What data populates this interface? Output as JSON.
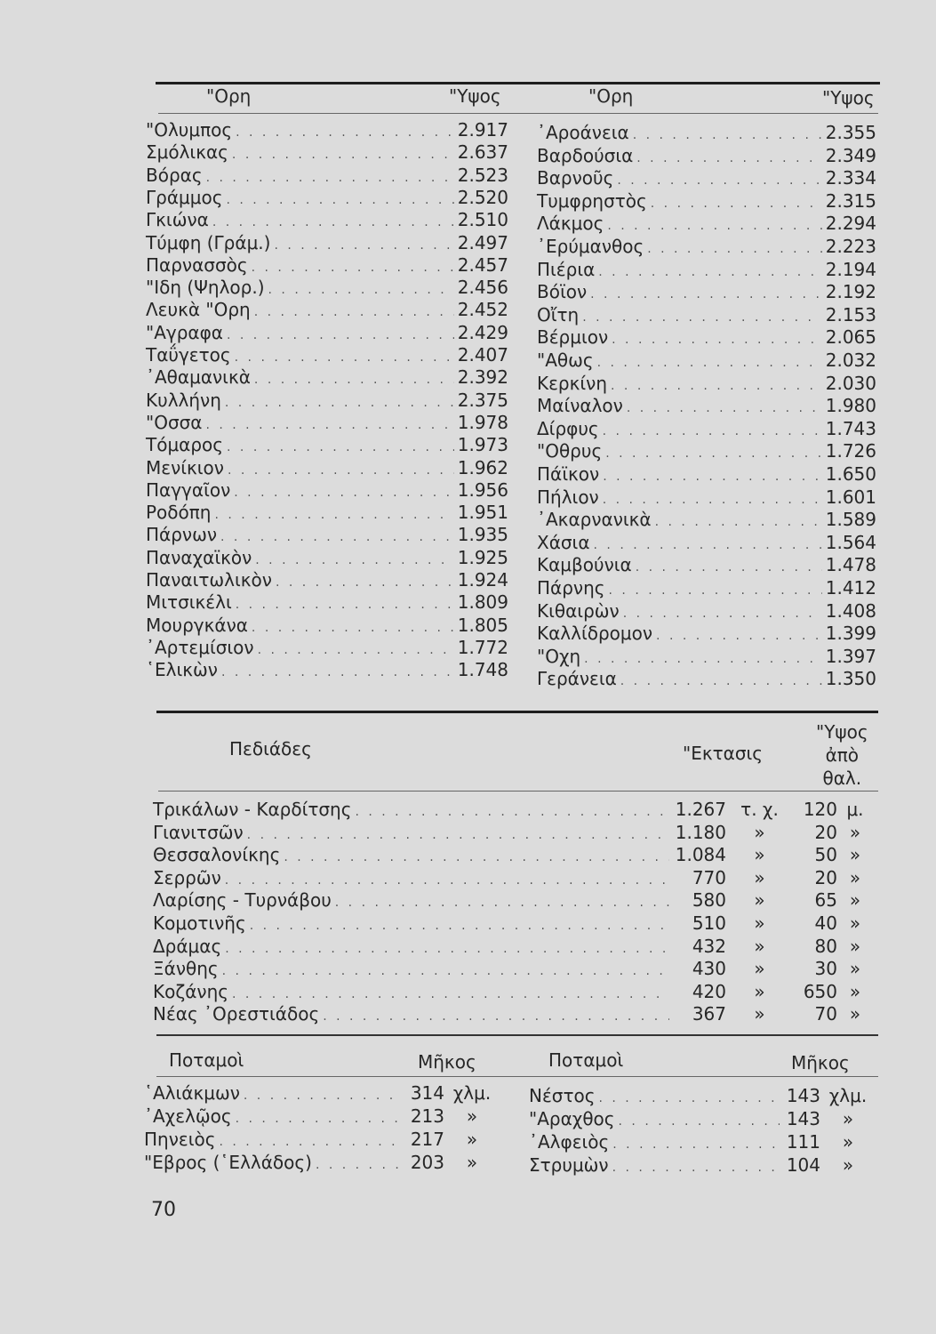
{
  "mountains": {
    "headers": {
      "name": "\"Ορη",
      "height": "\"Υψος"
    },
    "left": [
      [
        "\"Ολυμπος",
        "2.917"
      ],
      [
        "Σμόλικας",
        "2.637"
      ],
      [
        "Βόρας",
        "2.523"
      ],
      [
        "Γράμμος",
        "2.520"
      ],
      [
        "Γκιώνα",
        "2.510"
      ],
      [
        "Τύμφη (Γράμ.)",
        "2.497"
      ],
      [
        "Παρνασσὸς",
        "2.457"
      ],
      [
        "\"Ιδη (Ψηλορ.)",
        "2.456"
      ],
      [
        "Λευκὰ \"Ορη",
        "2.452"
      ],
      [
        "\"Αγραφα",
        "2.429"
      ],
      [
        "Ταΰγετος",
        "2.407"
      ],
      [
        "᾿Αθαμανικὰ",
        "2.392"
      ],
      [
        "Κυλλήνη",
        "2.375"
      ],
      [
        "\"Οσσα",
        "1.978"
      ],
      [
        "Τόμαρος",
        "1.973"
      ],
      [
        "Μενίκιον",
        "1.962"
      ],
      [
        "Παγγαῖον",
        "1.956"
      ],
      [
        "Ροδόπη",
        "1.951"
      ],
      [
        "Πάρνων",
        "1.935"
      ],
      [
        "Παναχαϊκὸν",
        "1.925"
      ],
      [
        "Παναιτωλικὸν",
        "1.924"
      ],
      [
        "Μιτσικέλι",
        "1.809"
      ],
      [
        "Μουργκάνα",
        "1.805"
      ],
      [
        "᾿Αρτεμίσιον",
        "1.772"
      ],
      [
        "῾Ελικὼν",
        "1.748"
      ]
    ],
    "right": [
      [
        "᾿Αροάνεια",
        "2.355"
      ],
      [
        "Βαρδούσια",
        "2.349"
      ],
      [
        "Βαρνοῦς",
        "2.334"
      ],
      [
        "Τυμφρηστὸς",
        "2.315"
      ],
      [
        "Λάκμος",
        "2.294"
      ],
      [
        "᾿Ερύμανθος",
        "2.223"
      ],
      [
        "Πιέρια",
        "2.194"
      ],
      [
        "Βόϊον",
        "2.192"
      ],
      [
        "Οἴτη",
        "2.153"
      ],
      [
        "Βέρμιον",
        "2.065"
      ],
      [
        "\"Αθως",
        "2.032"
      ],
      [
        "Κερκίνη",
        "2.030"
      ],
      [
        "Μαίναλον",
        "1.980"
      ],
      [
        "Δίρφυς",
        "1.743"
      ],
      [
        "\"Οθρυς",
        "1.726"
      ],
      [
        "Πάϊκον",
        "1.650"
      ],
      [
        "Πήλιον",
        "1.601"
      ],
      [
        "᾿Ακαρνανικὰ",
        "1.589"
      ],
      [
        "Χάσια",
        "1.564"
      ],
      [
        "Καμβούνια",
        "1.478"
      ],
      [
        "Πάρνης",
        "1.412"
      ],
      [
        "Κιθαιρὼν",
        "1.408"
      ],
      [
        "Καλλίδρομον",
        "1.399"
      ],
      [
        "\"Οχη",
        "1.397"
      ],
      [
        "Γεράνεια",
        "1.350"
      ]
    ]
  },
  "plains": {
    "headers": {
      "name": "Πεδιάδες",
      "area": "\"Εκτασις",
      "alt1": "\"Υψος",
      "alt2": "ἀπὸ",
      "alt3": "θαλ."
    },
    "rows": [
      [
        "Τρικάλων - Καρδίτσης",
        "1.267",
        "τ. χ.",
        "120",
        "μ."
      ],
      [
        "Γιανιτσῶν",
        "1.180",
        "»",
        "20",
        "»"
      ],
      [
        "Θεσσαλονίκης",
        "1.084",
        "»",
        "50",
        "»"
      ],
      [
        "Σερρῶν",
        "770",
        "»",
        "20",
        "»"
      ],
      [
        "Λαρίσης - Τυρνάβου",
        "580",
        "»",
        "65",
        "»"
      ],
      [
        "Κομοτινῆς",
        "510",
        "»",
        "40",
        "»"
      ],
      [
        "Δράμας",
        "432",
        "»",
        "80",
        "»"
      ],
      [
        "Ξάνθης",
        "430",
        "»",
        "30",
        "»"
      ],
      [
        "Κοζάνης",
        "420",
        "»",
        "650",
        "»"
      ],
      [
        "Νέας ᾿Ορεστιάδος",
        "367",
        "»",
        "70",
        "»"
      ]
    ]
  },
  "rivers": {
    "headers": {
      "name": "Ποταμοὶ",
      "length": "Μῆκος"
    },
    "left": [
      [
        "῾Αλιάκμων",
        "314",
        "χλμ."
      ],
      [
        "᾿Αχελῷος",
        "213",
        "»"
      ],
      [
        "Πηνειὸς",
        "217",
        "»"
      ],
      [
        "\"Εβρος (῾Ελλάδος)",
        "203",
        "»"
      ]
    ],
    "right": [
      [
        "Νέστος",
        "143",
        "χλμ."
      ],
      [
        "\"Αραχθος",
        "143",
        "»"
      ],
      [
        "᾿Αλφειὸς",
        "111",
        "»"
      ],
      [
        "Στρυμὼν",
        "104",
        "»"
      ]
    ]
  },
  "page_number": "70"
}
